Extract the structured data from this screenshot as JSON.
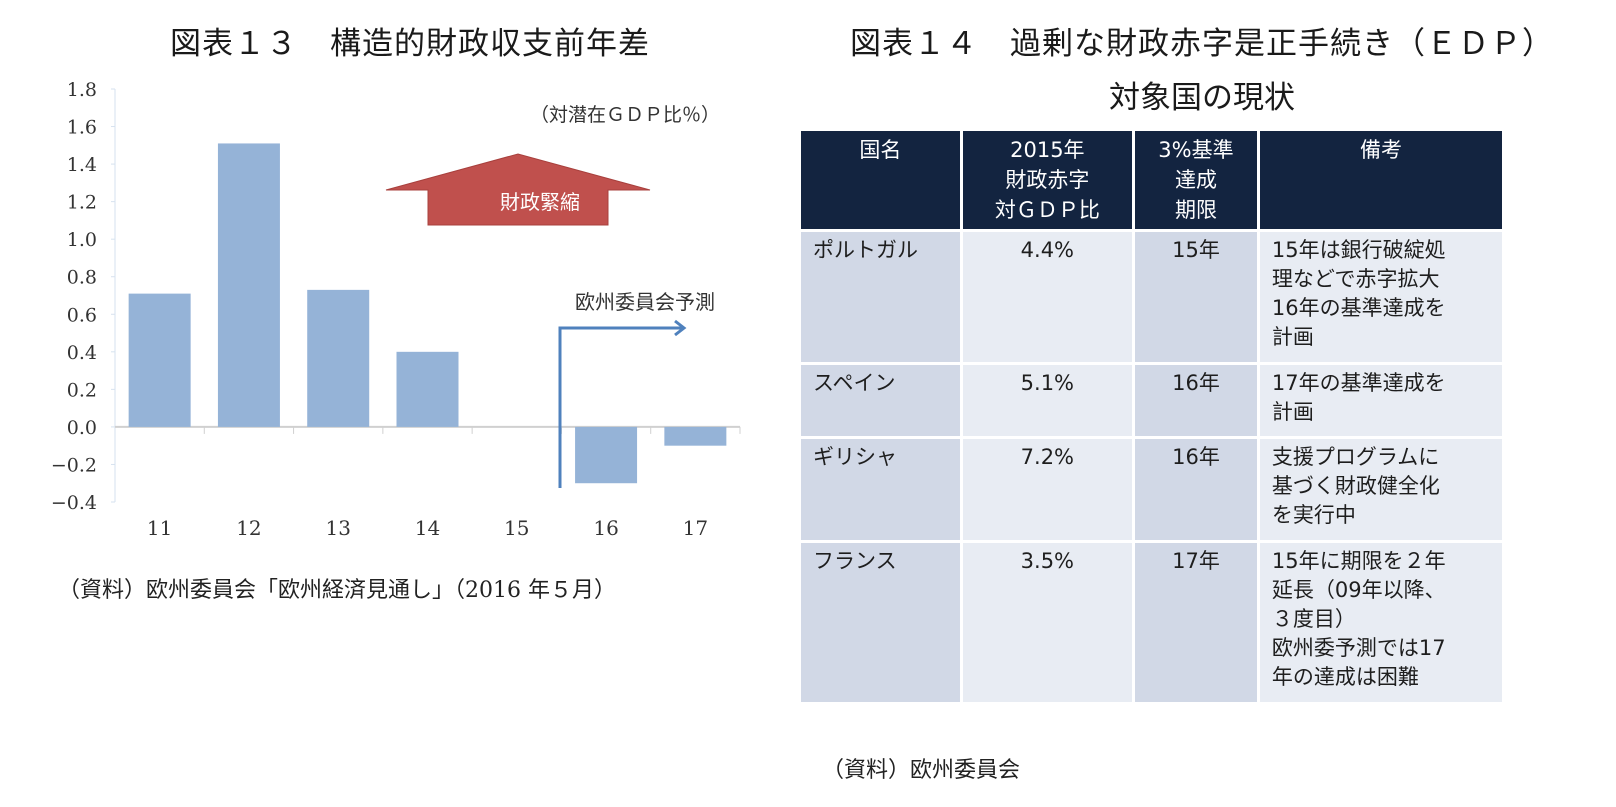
{
  "figure13": {
    "title": "図表１３　構造的財政収支前年差",
    "unit_note": "（対潜在ＧＤＰ比％）",
    "source": "（資料）欧州委員会「欧州経済見通し」（2016 年５月）",
    "annotations": {
      "austerity_arrow_label": "財政緊縮",
      "forecast_label": "欧州委員会予測"
    }
  },
  "chart_data": {
    "type": "bar",
    "title": "図表１３　構造的財政収支前年差",
    "xlabel": "",
    "ylabel": "（対潜在ＧＤＰ比％）",
    "categories": [
      "11",
      "12",
      "13",
      "14",
      "15",
      "16",
      "17"
    ],
    "values": [
      0.71,
      1.51,
      0.73,
      0.4,
      0.0,
      -0.3,
      -0.1
    ],
    "ylim": [
      -0.4,
      1.8
    ],
    "yticks": [
      1.8,
      1.6,
      1.4,
      1.2,
      1.0,
      0.8,
      0.6,
      0.4,
      0.2,
      0.0,
      -0.2,
      -0.4
    ],
    "ytick_labels": [
      "1.8",
      "1.6",
      "1.4",
      "1.2",
      "1.0",
      "0.8",
      "0.6",
      "0.4",
      "0.2",
      "0.0",
      "−0.2",
      "−0.4"
    ],
    "grid": false,
    "bar_color": "#95b3d7",
    "forecast_start_category": "16",
    "annotations": [
      "財政緊縮",
      "欧州委員会予測"
    ],
    "colors": {
      "arrow_fill": "#c0504d",
      "forecast_arrow": "#4f81bd"
    }
  },
  "figure14": {
    "title_line1": "図表１４　過剰な財政赤字是正手続き（ＥＤＰ）",
    "title_line2": "対象国の現状",
    "headers": [
      "国名",
      "2015年\n財政赤字\n対ＧＤＰ比",
      "3%基準\n達成\n期限",
      "備考"
    ],
    "rows": [
      {
        "country": "ポルトガル",
        "deficit": "4.4%",
        "deadline": "15年",
        "note": "15年は銀行破綻処\n理などで赤字拡大\n16年の基準達成を\n計画"
      },
      {
        "country": "スペイン",
        "deficit": "5.1%",
        "deadline": "16年",
        "note": "17年の基準達成を\n計画"
      },
      {
        "country": "ギリシャ",
        "deficit": "7.2%",
        "deadline": "16年",
        "note": "支援プログラムに\n基づく財政健全化\nを実行中"
      },
      {
        "country": "フランス",
        "deficit": "3.5%",
        "deadline": "17年",
        "note": "15年に期限を２年\n延長（09年以降、\n３度目）\n欧州委予測では17\n年の達成は困難"
      }
    ],
    "source": "（資料）欧州委員会",
    "colors": {
      "header_bg": "#132440",
      "cell_dark": "#d1d8e6",
      "cell_light": "#e8ecf3"
    }
  }
}
